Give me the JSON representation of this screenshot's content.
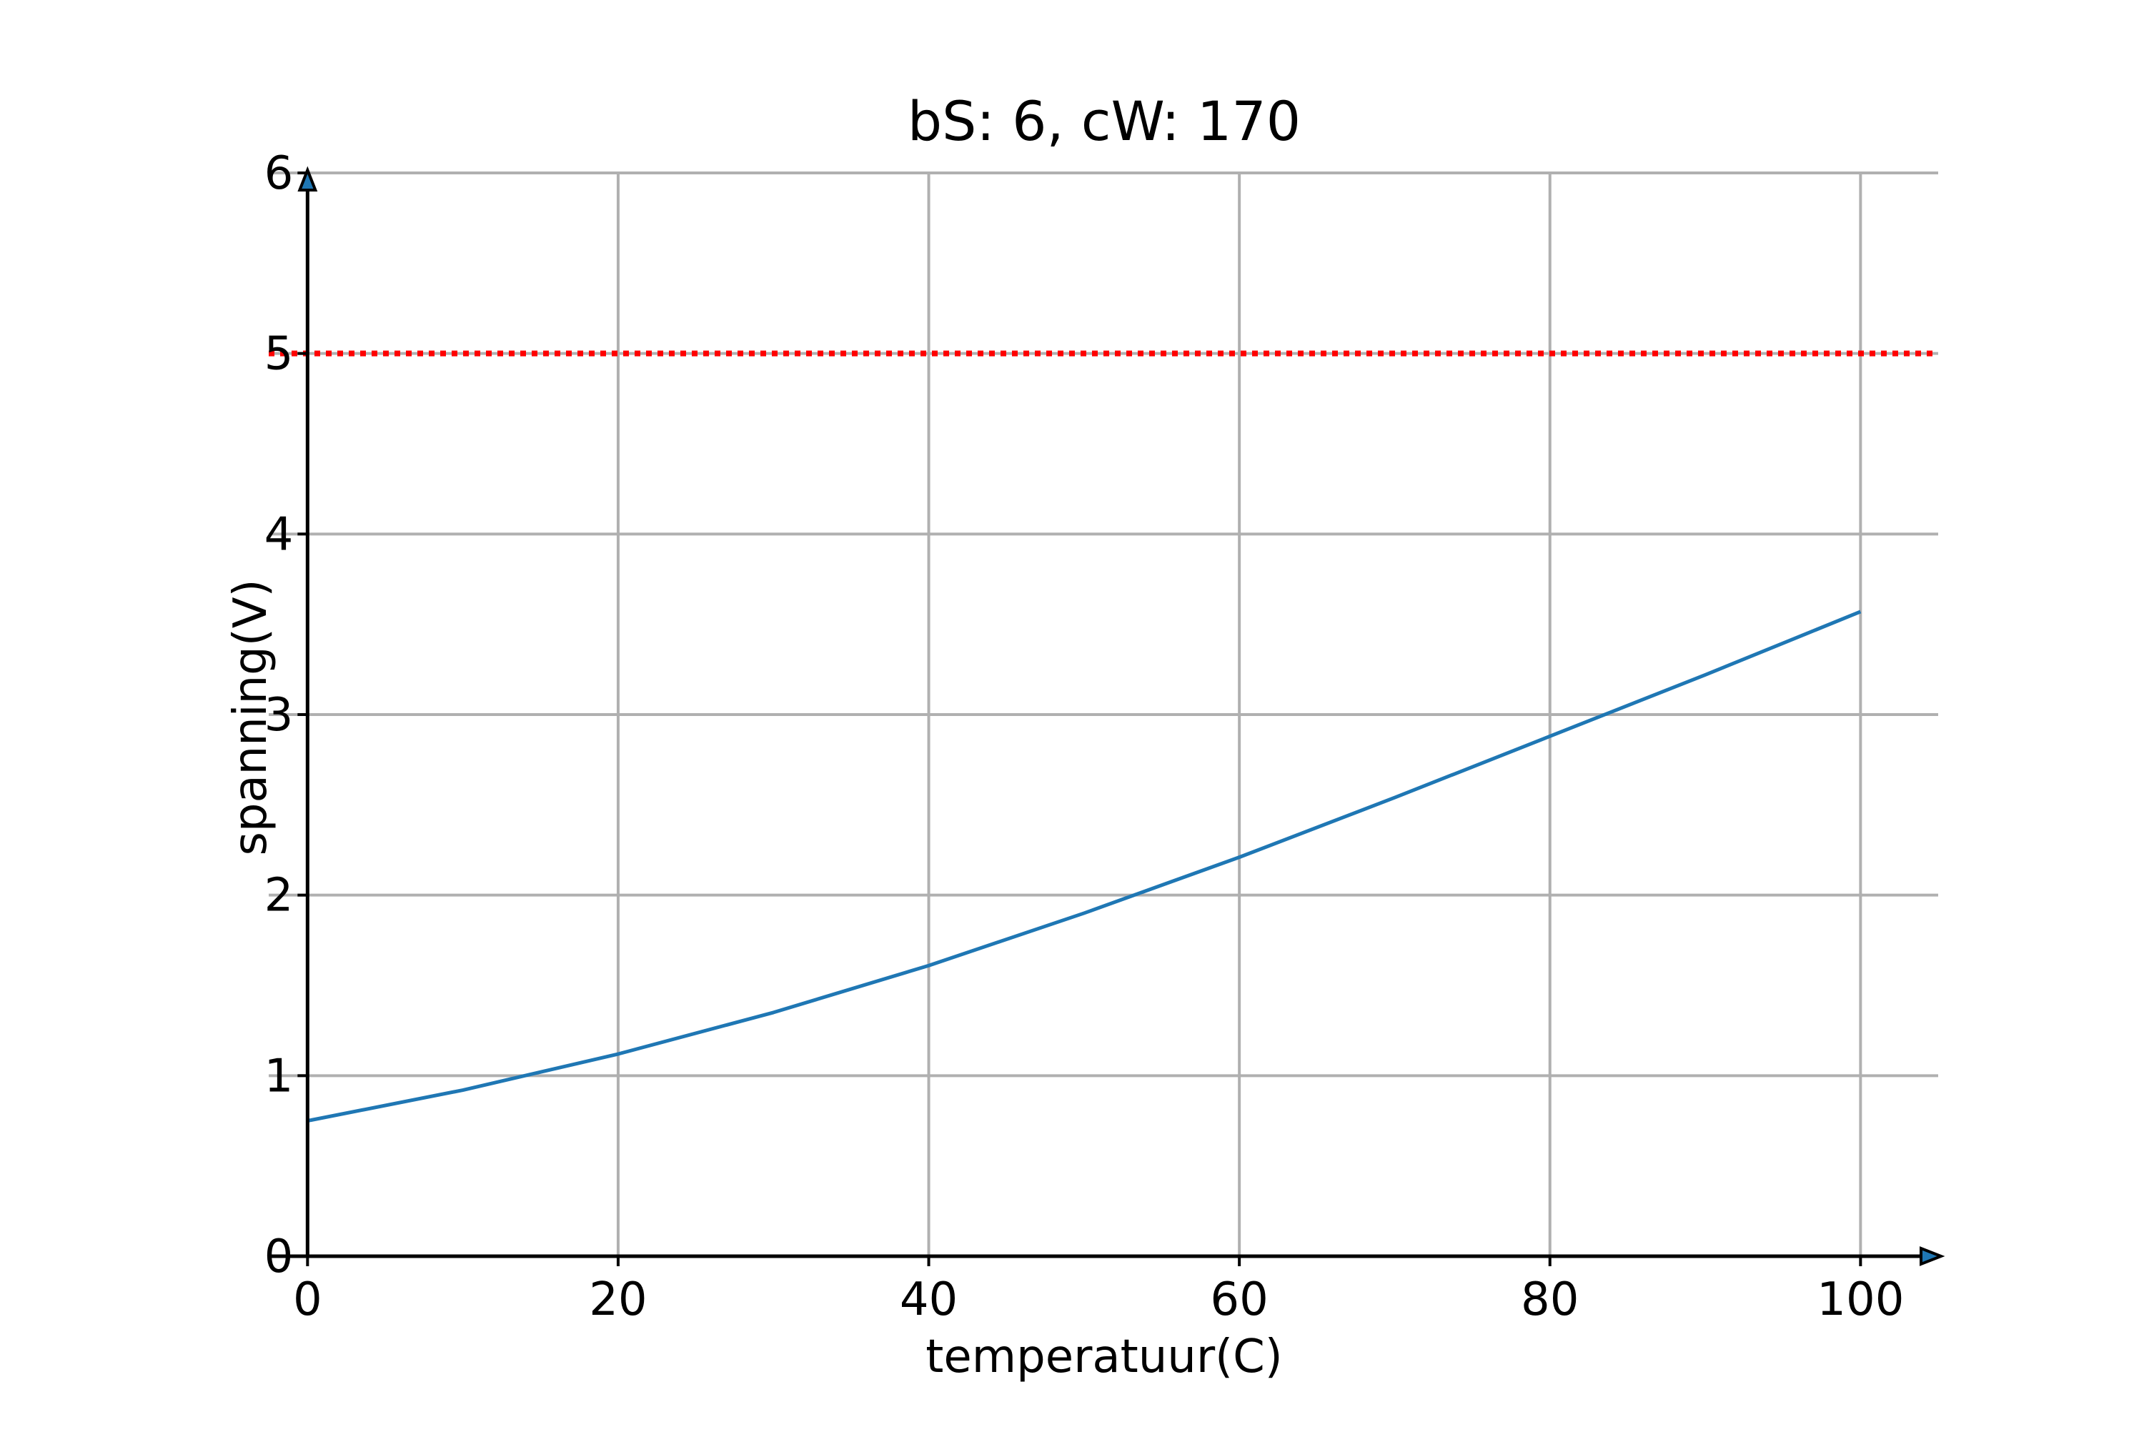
{
  "chart_data": {
    "type": "line",
    "title": "bS: 6, cW: 170",
    "xlabel": "temperatuur(C)",
    "ylabel": "spanning(V)",
    "xlim": [
      -2.5,
      105
    ],
    "ylim": [
      0,
      6
    ],
    "xticks": [
      0,
      20,
      40,
      60,
      80,
      100
    ],
    "yticks": [
      0,
      1,
      2,
      3,
      4,
      5,
      6
    ],
    "grid": true,
    "colors": {
      "series": "#1f77b4",
      "reference": "#ff0000",
      "grid": "#b0b0b0",
      "axis": "#000000"
    },
    "series": [
      {
        "x": [
          0,
          10,
          20,
          30,
          40,
          50,
          60,
          70,
          80,
          90,
          100
        ],
        "values": [
          0.75,
          0.92,
          1.12,
          1.35,
          1.61,
          1.9,
          2.21,
          2.54,
          2.88,
          3.22,
          3.57
        ]
      }
    ],
    "reference_line": {
      "y": 5,
      "style": "dotted"
    }
  }
}
